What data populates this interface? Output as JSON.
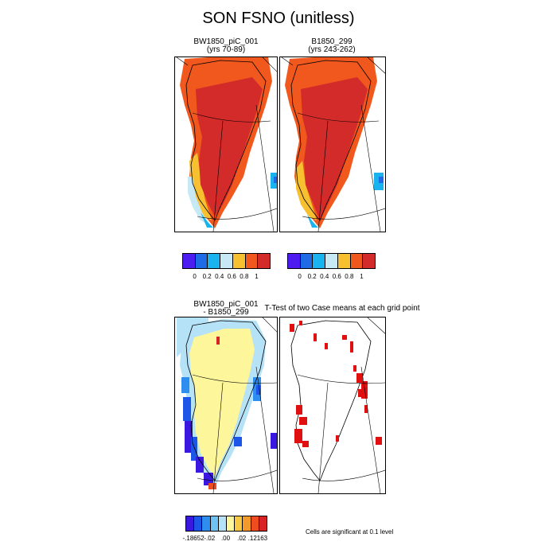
{
  "main_title": "SON FSNO (unitless)",
  "panels": [
    {
      "title_line1": "BW1850_piC_001",
      "title_line2": "(yrs 70-89)"
    },
    {
      "title_line1": "B1850_299",
      "title_line2": "(yrs 243-262)"
    },
    {
      "title_line1": "BW1850_piC_001",
      "title_line2": "- B1850_299"
    },
    {
      "title_line1": "T-Test of two Case means at each grid point",
      "title_line2": ""
    }
  ],
  "colorbar_top": {
    "colors": [
      "#4d1cf0",
      "#1f6be6",
      "#19b4f0",
      "#c7e8f5",
      "#f6c030",
      "#f1581e",
      "#d32a2a"
    ],
    "labels": [
      "0",
      "0.2",
      "0.4",
      "0.6",
      "0.8",
      "1"
    ]
  },
  "colorbar_diff": {
    "colors": [
      "#3b18e0",
      "#1b56e8",
      "#2e8ef0",
      "#6fc3f4",
      "#b6e2f8",
      "#fdf69a",
      "#f9c944",
      "#f49a2c",
      "#ef4d20",
      "#d82226"
    ],
    "labels": [
      "-.18652",
      "-.02",
      ".00",
      ".02",
      ".12163"
    ]
  },
  "significance_note": "Cells are significant at 0.1 level",
  "colors": {
    "snow_max": "#d32a2a",
    "snow_high": "#f1581e",
    "snow_mid": "#f6c030",
    "diff_neutral": "#fdf69a",
    "significant": "#e01010"
  }
}
